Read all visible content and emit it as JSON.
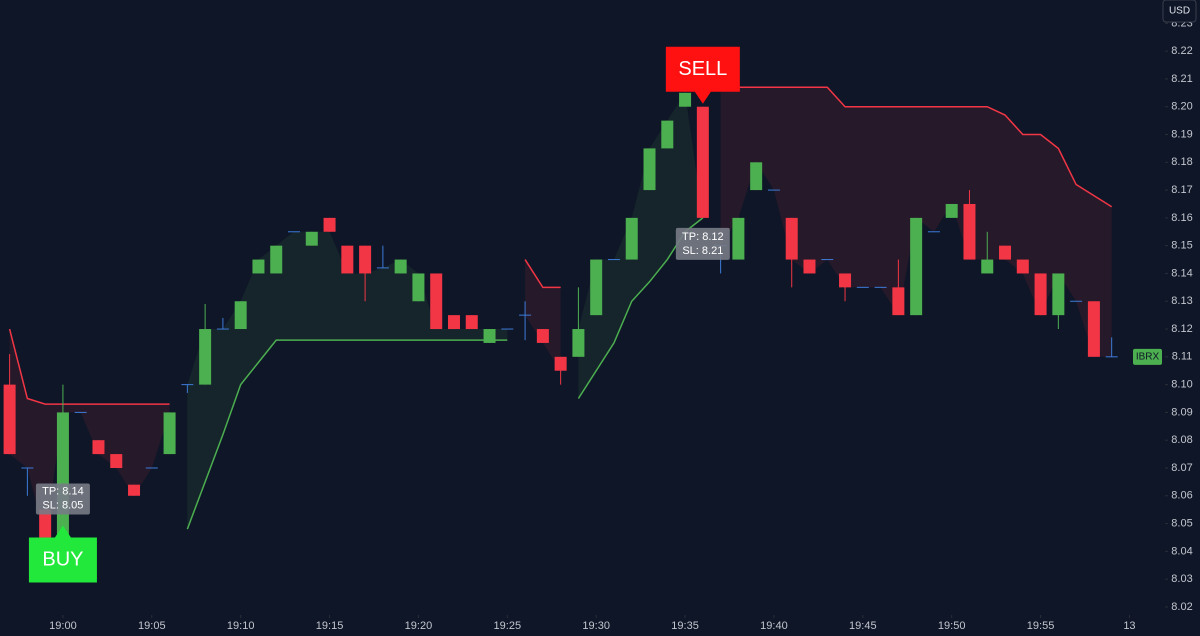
{
  "chart_data": {
    "type": "candlestick",
    "currency": "USD",
    "symbol": "IBRX",
    "up_color": "#4caf50",
    "down_color": "#f23645",
    "x": [
      -3,
      -2,
      -1,
      0,
      1,
      2,
      3,
      4,
      5,
      6,
      7,
      8,
      9,
      10,
      11,
      12,
      13,
      14,
      15,
      16,
      17,
      18,
      19,
      20,
      21,
      22,
      23,
      24,
      25,
      26,
      27,
      28,
      29,
      30,
      31,
      32,
      33,
      34,
      35,
      36,
      37,
      38,
      39,
      40,
      41,
      42,
      43,
      44,
      45,
      46,
      47,
      48,
      49,
      50,
      51,
      52,
      53,
      54,
      55,
      56,
      57,
      58,
      59
    ],
    "open": [
      8.1,
      8.07,
      8.055,
      8.045,
      8.09,
      8.08,
      8.075,
      8.064,
      8.07,
      8.075,
      8.1,
      8.1,
      8.12,
      8.12,
      8.14,
      8.14,
      8.155,
      8.15,
      8.16,
      8.15,
      8.15,
      8.142,
      8.14,
      8.13,
      8.14,
      8.125,
      8.125,
      8.115,
      8.12,
      8.125,
      8.12,
      8.11,
      8.11,
      8.125,
      8.145,
      8.145,
      8.17,
      8.185,
      8.2,
      8.2,
      8.15,
      8.145,
      8.17,
      8.17,
      8.16,
      8.145,
      8.145,
      8.14,
      8.135,
      8.135,
      8.135,
      8.125,
      8.155,
      8.16,
      8.165,
      8.14,
      8.15,
      8.145,
      8.14,
      8.125,
      8.13,
      8.13,
      8.11
    ],
    "high": [
      8.111,
      8.07,
      8.055,
      8.1,
      8.09,
      8.08,
      8.075,
      8.064,
      8.07,
      8.09,
      8.1,
      8.129,
      8.124,
      8.13,
      8.145,
      8.15,
      8.155,
      8.155,
      8.16,
      8.15,
      8.15,
      8.15,
      8.145,
      8.14,
      8.14,
      8.125,
      8.125,
      8.12,
      8.12,
      8.13,
      8.12,
      8.11,
      8.135,
      8.145,
      8.145,
      8.16,
      8.185,
      8.195,
      8.205,
      8.2,
      8.15,
      8.16,
      8.18,
      8.17,
      8.16,
      8.145,
      8.145,
      8.14,
      8.135,
      8.135,
      8.145,
      8.16,
      8.155,
      8.165,
      8.17,
      8.155,
      8.15,
      8.145,
      8.14,
      8.14,
      8.13,
      8.13,
      8.117
    ],
    "low": [
      8.075,
      8.06,
      8.045,
      8.045,
      8.09,
      8.075,
      8.07,
      8.06,
      8.07,
      8.075,
      8.097,
      8.1,
      8.12,
      8.12,
      8.14,
      8.14,
      8.155,
      8.15,
      8.155,
      8.14,
      8.13,
      8.142,
      8.14,
      8.13,
      8.12,
      8.12,
      8.12,
      8.115,
      8.12,
      8.116,
      8.115,
      8.1,
      8.11,
      8.125,
      8.145,
      8.145,
      8.17,
      8.185,
      8.2,
      8.16,
      8.14,
      8.145,
      8.17,
      8.17,
      8.135,
      8.14,
      8.145,
      8.13,
      8.135,
      8.135,
      8.125,
      8.125,
      8.155,
      8.16,
      8.145,
      8.14,
      8.145,
      8.14,
      8.125,
      8.12,
      8.13,
      8.11,
      8.11
    ],
    "close": [
      8.075,
      8.07,
      8.045,
      8.09,
      8.09,
      8.075,
      8.07,
      8.06,
      8.07,
      8.09,
      8.1,
      8.12,
      8.12,
      8.13,
      8.145,
      8.15,
      8.155,
      8.155,
      8.155,
      8.14,
      8.14,
      8.142,
      8.145,
      8.14,
      8.12,
      8.12,
      8.12,
      8.12,
      8.12,
      8.125,
      8.115,
      8.105,
      8.12,
      8.145,
      8.145,
      8.16,
      8.185,
      8.195,
      8.205,
      8.16,
      8.15,
      8.16,
      8.18,
      8.17,
      8.145,
      8.14,
      8.145,
      8.135,
      8.135,
      8.135,
      8.125,
      8.16,
      8.155,
      8.165,
      8.145,
      8.145,
      8.145,
      8.14,
      8.125,
      8.14,
      8.13,
      8.11,
      8.11
    ],
    "lines": [
      {
        "color": "#f23645",
        "values": [
          8.12,
          8.095,
          8.093,
          8.093,
          8.093,
          8.093,
          8.093,
          8.093,
          8.093,
          8.093,
          null,
          null,
          null,
          null,
          null,
          null,
          null,
          null,
          null,
          null,
          null,
          null,
          null,
          null,
          null,
          null,
          null,
          null,
          null,
          8.145,
          8.135,
          8.135,
          null,
          null,
          null,
          null,
          null,
          null,
          null,
          null,
          8.207,
          8.207,
          8.207,
          8.207,
          8.207,
          8.207,
          8.207,
          8.2,
          8.2,
          8.2,
          8.2,
          8.2,
          8.2,
          8.2,
          8.2,
          8.2,
          8.197,
          8.19,
          8.19,
          8.185,
          8.172,
          8.168,
          8.164
        ]
      },
      {
        "color": "#4caf50",
        "values": [
          null,
          null,
          null,
          null,
          null,
          null,
          null,
          null,
          null,
          null,
          8.048,
          8.065,
          8.082,
          8.1,
          8.108,
          8.116,
          8.116,
          8.116,
          8.116,
          8.116,
          8.116,
          8.116,
          8.116,
          8.116,
          8.116,
          8.116,
          8.116,
          8.116,
          8.116,
          null,
          null,
          null,
          8.095,
          8.105,
          8.115,
          8.13,
          8.137,
          8.145,
          8.155,
          8.16,
          null,
          null,
          null,
          null,
          null,
          null,
          null,
          null,
          null,
          null,
          null,
          null,
          null,
          null,
          null,
          null,
          null,
          null,
          null,
          null,
          null,
          null,
          null
        ]
      }
    ],
    "signals": [
      {
        "label": "BUY",
        "x": 0,
        "tp": "TP: 8.14",
        "sl": "SL: 8.05",
        "color": "#22e83c"
      },
      {
        "label": "SELL",
        "x": 36,
        "tp": "TP: 8.12",
        "sl": "SL: 8.21",
        "color": "#ff1111"
      }
    ],
    "xlim": [
      -3.54,
      62
    ],
    "xticks": [
      {
        "value": 0,
        "label": "19:00"
      },
      {
        "value": 5,
        "label": "19:05"
      },
      {
        "value": 10,
        "label": "19:10"
      },
      {
        "value": 15,
        "label": "19:15"
      },
      {
        "value": 20,
        "label": "19:20"
      },
      {
        "value": 25,
        "label": "19:25"
      },
      {
        "value": 30,
        "label": "19:30"
      },
      {
        "value": 35,
        "label": "19:35"
      },
      {
        "value": 40,
        "label": "19:40"
      },
      {
        "value": 45,
        "label": "19:45"
      },
      {
        "value": 50,
        "label": "19:50"
      },
      {
        "value": 55,
        "label": "19:55"
      },
      {
        "value": 60,
        "label": "13"
      }
    ],
    "ylim": [
      8.0171,
      8.2384
    ],
    "yticks": [
      8.02,
      8.03,
      8.04,
      8.05,
      8.06,
      8.07,
      8.08,
      8.09,
      {
        "value": 8.1,
        "label": "8.10"
      },
      8.11,
      8.12,
      8.13,
      8.14,
      8.15,
      8.16,
      8.17,
      8.18,
      8.19,
      {
        "value": 8.2,
        "label": "8.20"
      },
      8.21,
      8.22,
      8.23
    ]
  }
}
